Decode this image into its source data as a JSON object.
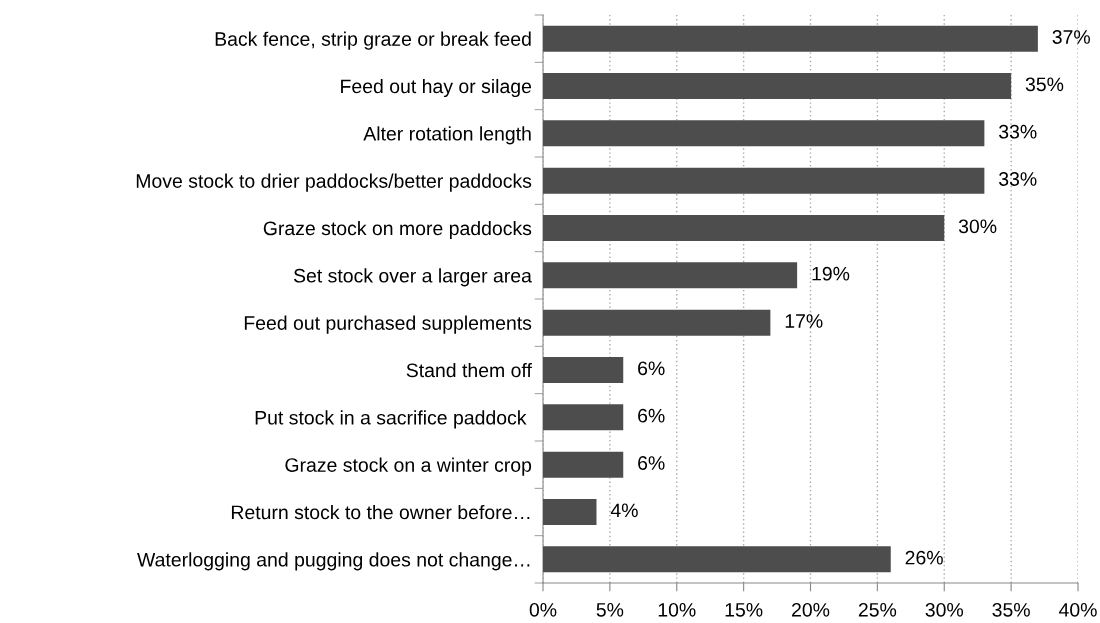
{
  "chart_data": {
    "type": "bar",
    "orientation": "horizontal",
    "categories": [
      "Back fence, strip graze or break feed",
      "Feed out hay or silage",
      "Alter rotation length",
      "Move stock to drier paddocks/better paddocks",
      "Graze stock on more paddocks",
      "Set stock over a larger area",
      "Feed out purchased supplements",
      "Stand them off",
      "Put stock in a sacrifice paddock ",
      "Graze stock on a winter crop",
      "Return stock to the owner before…",
      "Waterlogging and pugging does not change…"
    ],
    "values": [
      37,
      35,
      33,
      33,
      30,
      19,
      17,
      6,
      6,
      6,
      4,
      26
    ],
    "value_labels": [
      "37%",
      "35%",
      "33%",
      "33%",
      "30%",
      "19%",
      "17%",
      "6%",
      "6%",
      "6%",
      "4%",
      "26%"
    ],
    "color": "#4d4d4d",
    "xlim": [
      0,
      40
    ],
    "xticks": [
      {
        "value": 0,
        "label": "0%"
      },
      {
        "value": 5,
        "label": "5%"
      },
      {
        "value": 10,
        "label": "10%"
      },
      {
        "value": 15,
        "label": "15%"
      },
      {
        "value": 20,
        "label": "20%"
      },
      {
        "value": 25,
        "label": "25%"
      },
      {
        "value": 30,
        "label": "30%"
      },
      {
        "value": 35,
        "label": "35%"
      },
      {
        "value": 40,
        "label": "40%"
      }
    ],
    "grid": "x"
  }
}
